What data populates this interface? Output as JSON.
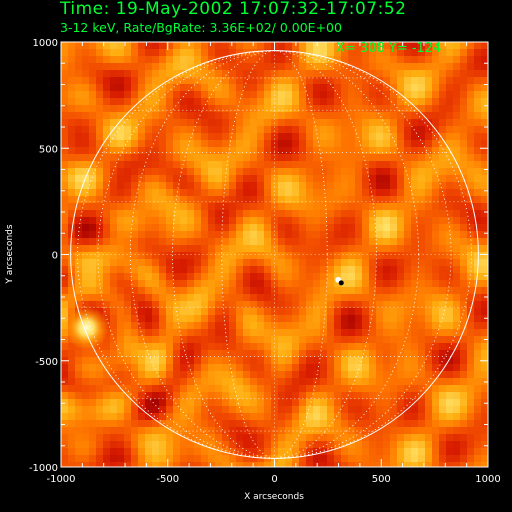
{
  "header": {
    "title": "Time: 19-May-2002 17:07:32-17:07:52",
    "subtitle": "3-12 keV, Rate/BgRate:  3.36E+02/  0.00E+00",
    "cursor_readout": "X=  308 Y= -124"
  },
  "colors": {
    "background": "#000000",
    "text": "#00ff33",
    "axes": "#ffffff",
    "colormap": [
      "#a00000",
      "#d81c00",
      "#f04800",
      "#ff7a00",
      "#ffae10",
      "#ffdd60",
      "#ffffd0"
    ]
  },
  "chart_data": {
    "type": "heatmap",
    "title": "Time: 19-May-2002 17:07:32-17:07:52",
    "subtitle": "3-12 keV, Rate/BgRate:  3.36E+02/  0.00E+00",
    "xlabel": "X arcseconds",
    "ylabel": "Y arcseconds",
    "xlim": [
      -1000,
      1000
    ],
    "ylim": [
      -1000,
      1000
    ],
    "xticks": [
      -1000,
      -500,
      0,
      500,
      1000
    ],
    "yticks": [
      -1000,
      -500,
      0,
      500,
      1000
    ],
    "solar_limb_radius": 955,
    "grid_lines": "heliographic, dotted",
    "sources": [
      {
        "name": "limb source",
        "x": -880,
        "y": -345,
        "intensity": 1.0
      },
      {
        "name": "disk point",
        "x": 308,
        "y": -124,
        "intensity": 1.0
      }
    ],
    "cursor": {
      "x": 308,
      "y": -124
    }
  }
}
